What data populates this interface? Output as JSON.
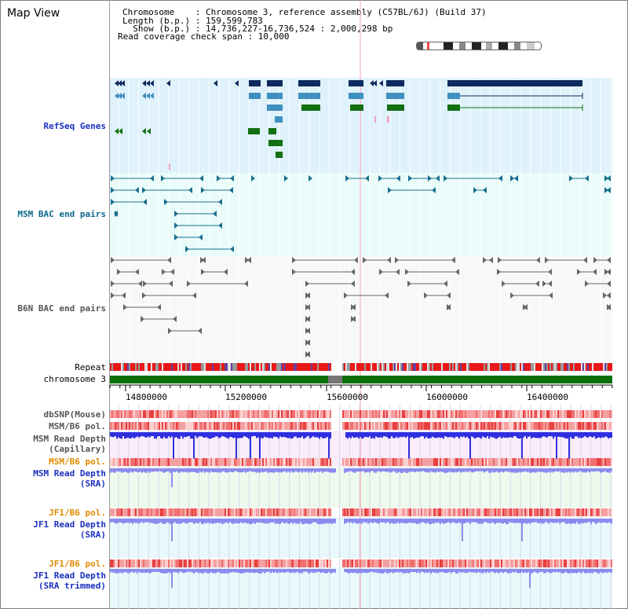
{
  "app": {
    "title": "Map View"
  },
  "header": {
    "chromosome_line": "Chromosome    : Chromosome 3, reference assembly (C57BL/6J) (Build 37)",
    "length_line": "Length (b.p.) : 159,599,783",
    "show_line": "  Show (b.p.) : 14,736,227-16,736,524 : 2,000,298 bp",
    "coverage_line": "Read coverage check span : 10,000"
  },
  "tracks": {
    "refseq": "RefSeq Genes",
    "msm_bac": "MSM BAC end pairs",
    "b6n_bac": "B6N BAC end pairs",
    "repeat": "Repeat",
    "chromosome": "chromosome 3",
    "dbsnp": "dbSNP(Mouse)",
    "msm_b6_pol": "MSM/B6 pol.",
    "msm_depth_cap_1": "MSM Read Depth",
    "msm_depth_cap_2": "(Capillary)",
    "msm_b6_pol_2": "MSM/B6 pol.",
    "msm_depth_sra_1": "MSM Read Depth",
    "msm_depth_sra_2": "(SRA)",
    "jf1_b6_pol": "JF1/B6 pol.",
    "jf1_depth_sra_1": "JF1 Read Depth",
    "jf1_depth_sra_2": "(SRA)",
    "jf1_b6_pol_2": "JF1/B6 pol.",
    "jf1_depth_trim_1": "JF1 Read Depth",
    "jf1_depth_trim_2": "(SRA trimmed)"
  },
  "ruler": {
    "ticks": [
      "14800000",
      "15200000",
      "15600000",
      "16000000",
      "16400000"
    ]
  },
  "colors": {
    "refseq_bg": "#dff1fa",
    "msm_bac_bg": "#eafcfa",
    "b6n_bg": "#f8f8fb",
    "gene_dark": "#0d2a5e",
    "gene_mid": "#3f8fbf",
    "gene_green": "#127012",
    "chrom_green": "#0b6e0b",
    "depth_blue": "#2f2fe0",
    "depth_light": "#8b8bef"
  }
}
